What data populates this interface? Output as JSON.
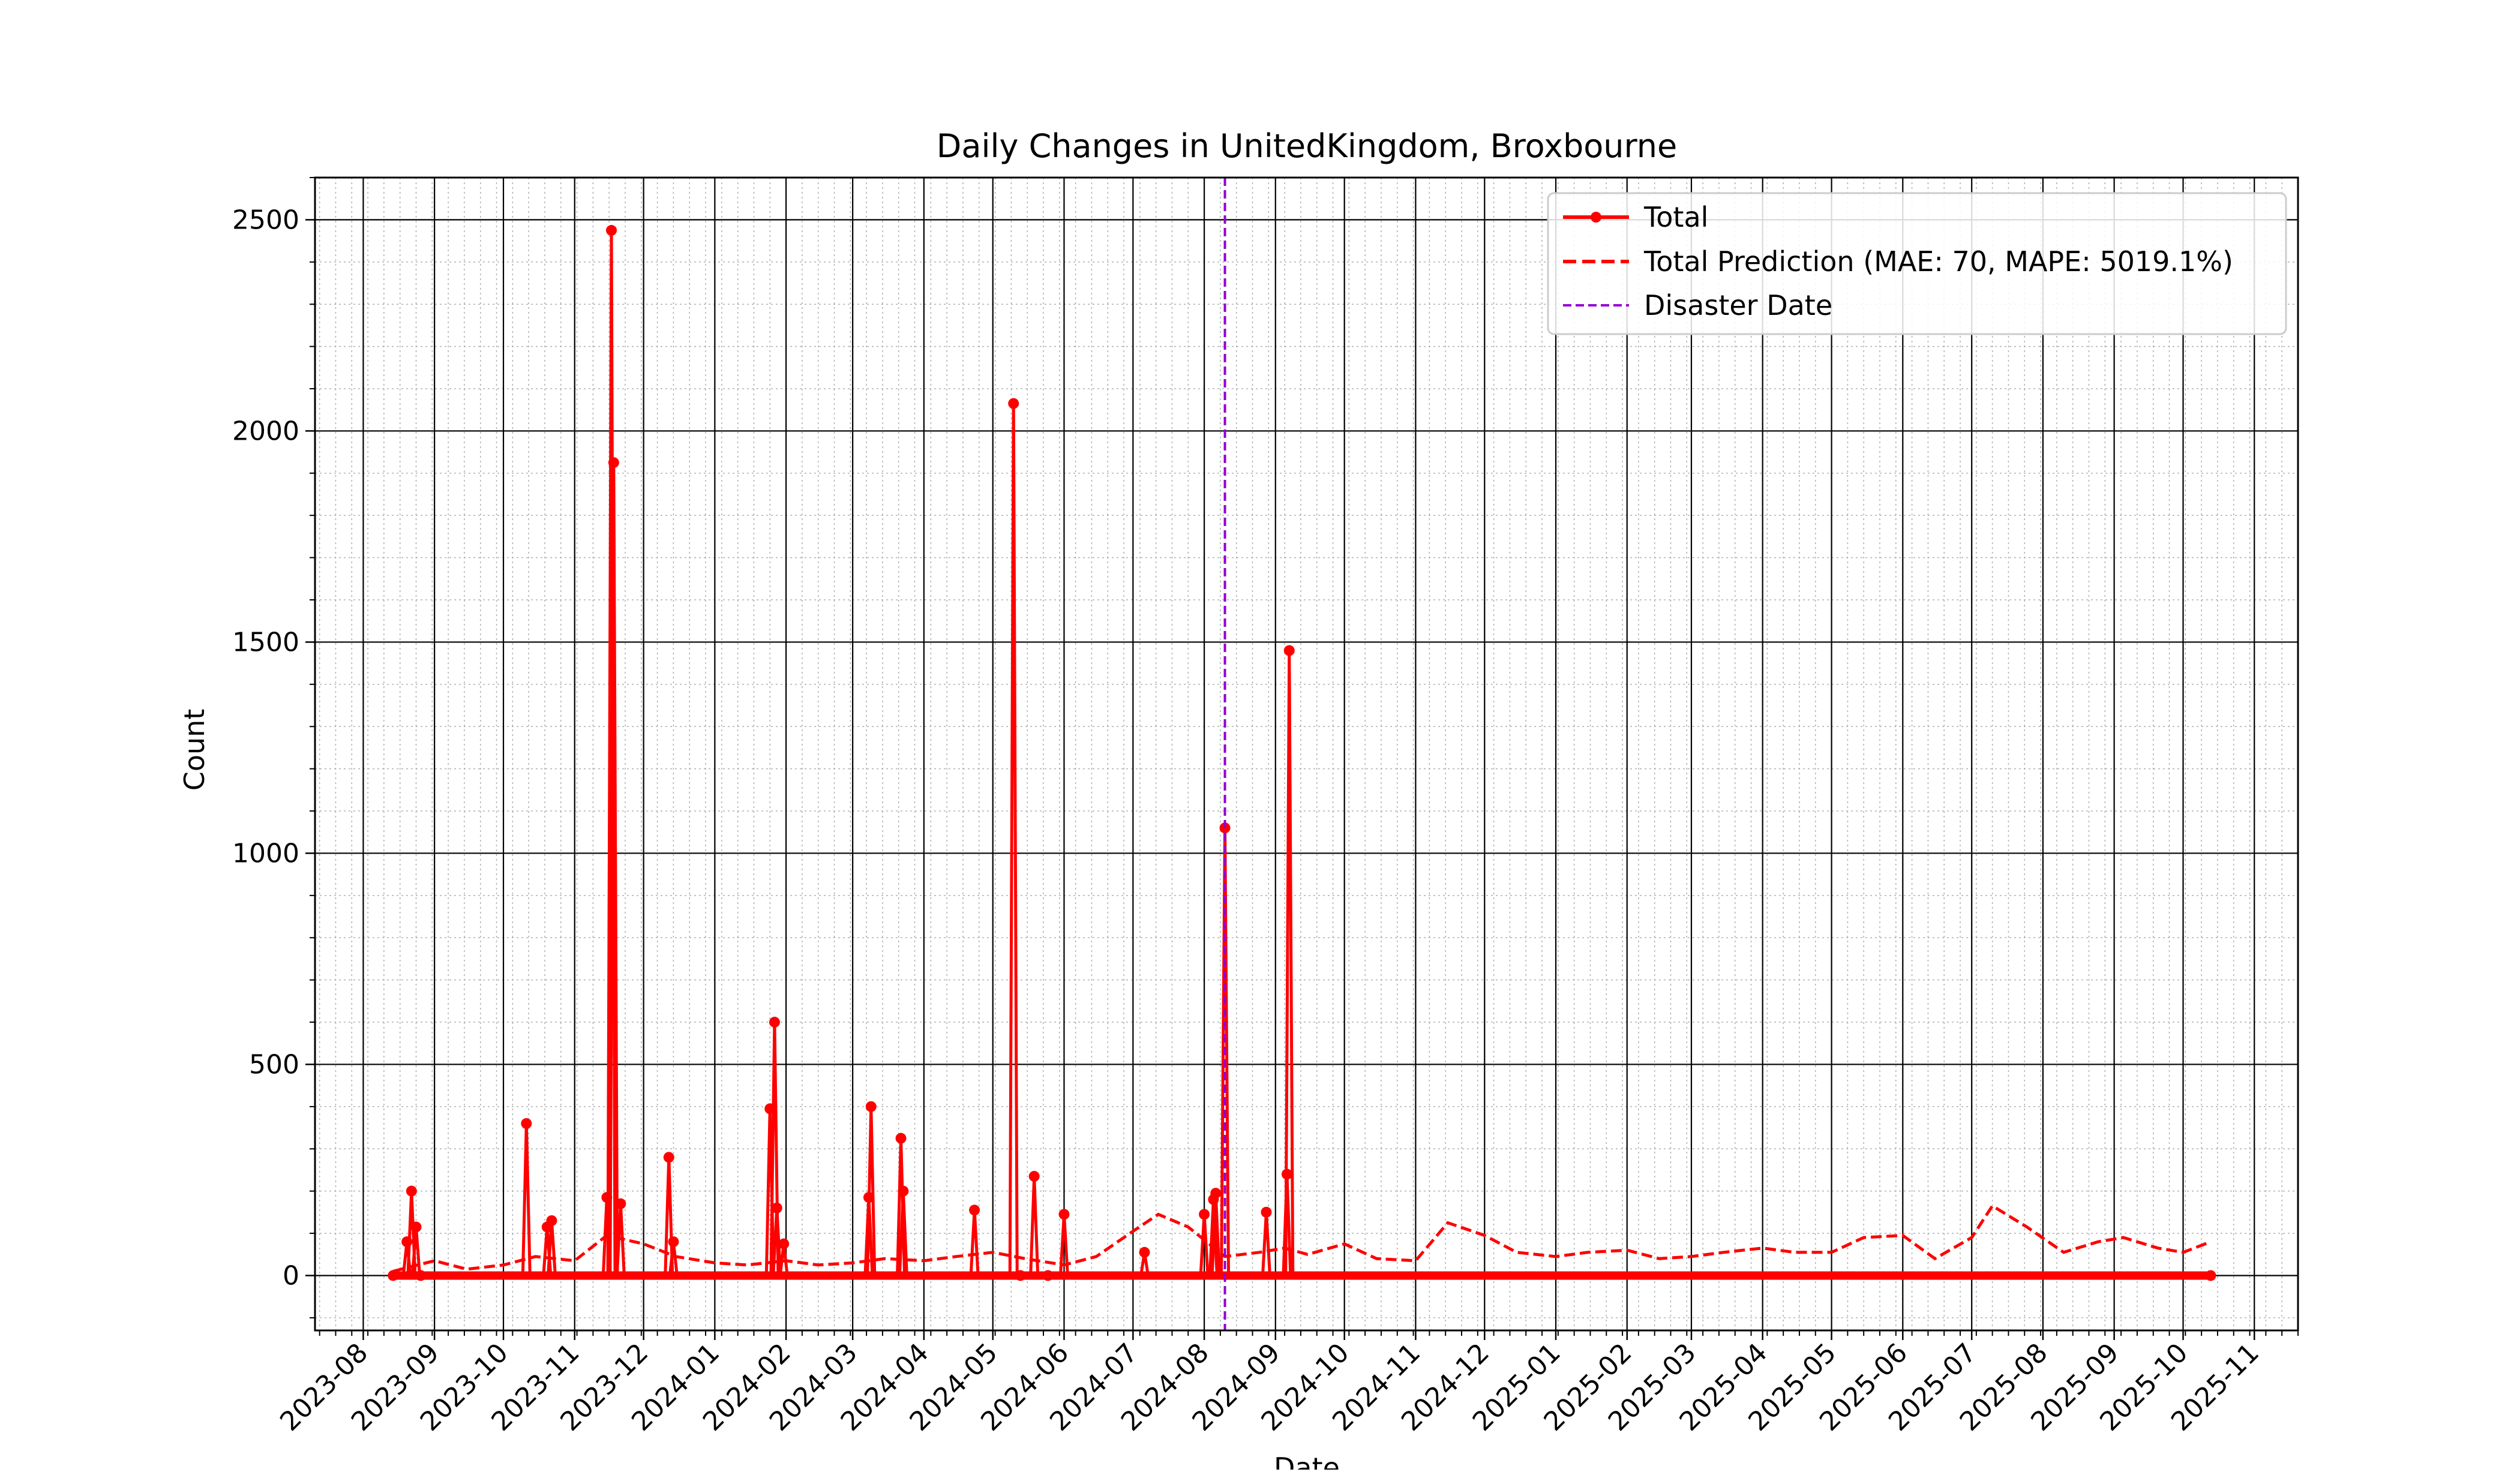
{
  "chart_data": {
    "type": "line",
    "title": "Daily Changes in UnitedKingdom, Broxbourne",
    "xlabel": "Date",
    "ylabel": "Count",
    "ylim": [
      -130,
      2600
    ],
    "xlim": [
      "2023-07-11",
      "2025-11-20"
    ],
    "grid": "major and minor",
    "legend_position": "top-right",
    "x_ticks": [
      "2023-08",
      "2023-09",
      "2023-10",
      "2023-11",
      "2023-12",
      "2024-01",
      "2024-02",
      "2024-03",
      "2024-04",
      "2024-05",
      "2024-06",
      "2024-07",
      "2024-08",
      "2024-09",
      "2024-10",
      "2024-11",
      "2024-12",
      "2025-01",
      "2025-02",
      "2025-03",
      "2025-04",
      "2025-05",
      "2025-06",
      "2025-07",
      "2025-08",
      "2025-09",
      "2025-10",
      "2025-11"
    ],
    "y_ticks": [
      0,
      500,
      1000,
      1500,
      2000,
      2500
    ],
    "colors": {
      "total": "#ff0000",
      "prediction": "#ff0000",
      "disaster": "#9400d3"
    },
    "series": [
      {
        "name": "Total",
        "style": "solid-line-with-markers",
        "x": [
          "2023-08-14",
          "2023-08-20",
          "2023-08-22",
          "2023-08-24",
          "2023-08-26",
          "2023-10-11",
          "2023-10-20",
          "2023-10-22",
          "2023-11-15",
          "2023-11-17",
          "2023-11-18",
          "2023-11-21",
          "2023-12-12",
          "2023-12-14",
          "2024-01-25",
          "2024-01-27",
          "2024-01-28",
          "2024-01-31",
          "2024-03-08",
          "2024-03-09",
          "2024-03-22",
          "2024-03-23",
          "2024-04-23",
          "2024-05-10",
          "2024-05-13",
          "2024-05-19",
          "2024-05-25",
          "2024-06-01",
          "2024-07-06",
          "2024-08-01",
          "2024-08-05",
          "2024-08-06",
          "2024-08-10",
          "2024-08-28",
          "2024-09-06",
          "2024-09-07",
          "2025-10-13"
        ],
        "y": [
          0,
          80,
          200,
          115,
          0,
          360,
          115,
          130,
          185,
          2475,
          1925,
          170,
          280,
          80,
          395,
          600,
          160,
          75,
          185,
          400,
          325,
          200,
          155,
          2065,
          0,
          235,
          0,
          145,
          55,
          145,
          180,
          195,
          1060,
          150,
          240,
          1480,
          0
        ]
      },
      {
        "name": "Total Prediction (MAE: 70, MAPE: 5019.1%)",
        "style": "dashed-line",
        "x": [
          "2023-08-14",
          "2023-09-01",
          "2023-09-15",
          "2023-10-01",
          "2023-10-15",
          "2023-11-01",
          "2023-11-15",
          "2023-12-01",
          "2023-12-15",
          "2024-01-01",
          "2024-01-15",
          "2024-02-01",
          "2024-02-15",
          "2024-03-01",
          "2024-03-15",
          "2024-04-01",
          "2024-04-15",
          "2024-05-01",
          "2024-05-15",
          "2024-06-01",
          "2024-06-15",
          "2024-07-01",
          "2024-07-12",
          "2024-07-25",
          "2024-08-10",
          "2024-08-25",
          "2024-09-05",
          "2024-09-15",
          "2024-10-01",
          "2024-10-15",
          "2024-11-01",
          "2024-11-15",
          "2024-12-01",
          "2024-12-15",
          "2025-01-01",
          "2025-01-15",
          "2025-02-01",
          "2025-02-15",
          "2025-03-01",
          "2025-03-15",
          "2025-04-01",
          "2025-04-15",
          "2025-05-01",
          "2025-05-15",
          "2025-06-01",
          "2025-06-15",
          "2025-07-01",
          "2025-07-10",
          "2025-07-25",
          "2025-08-10",
          "2025-08-25",
          "2025-09-05",
          "2025-09-20",
          "2025-10-01",
          "2025-10-13"
        ],
        "y": [
          10,
          35,
          15,
          25,
          45,
          35,
          95,
          75,
          45,
          30,
          25,
          35,
          25,
          30,
          40,
          35,
          45,
          55,
          40,
          25,
          45,
          105,
          145,
          115,
          45,
          55,
          65,
          50,
          75,
          40,
          35,
          125,
          95,
          55,
          45,
          55,
          60,
          40,
          45,
          55,
          65,
          55,
          55,
          90,
          95,
          40,
          90,
          165,
          115,
          55,
          80,
          90,
          65,
          55,
          80
        ]
      }
    ],
    "annotations": [
      {
        "name": "Disaster Date",
        "type": "vline",
        "x": "2024-08-10"
      }
    ],
    "legend": [
      "Total",
      "Total Prediction (MAE: 70, MAPE: 5019.1%)",
      "Disaster Date"
    ]
  }
}
